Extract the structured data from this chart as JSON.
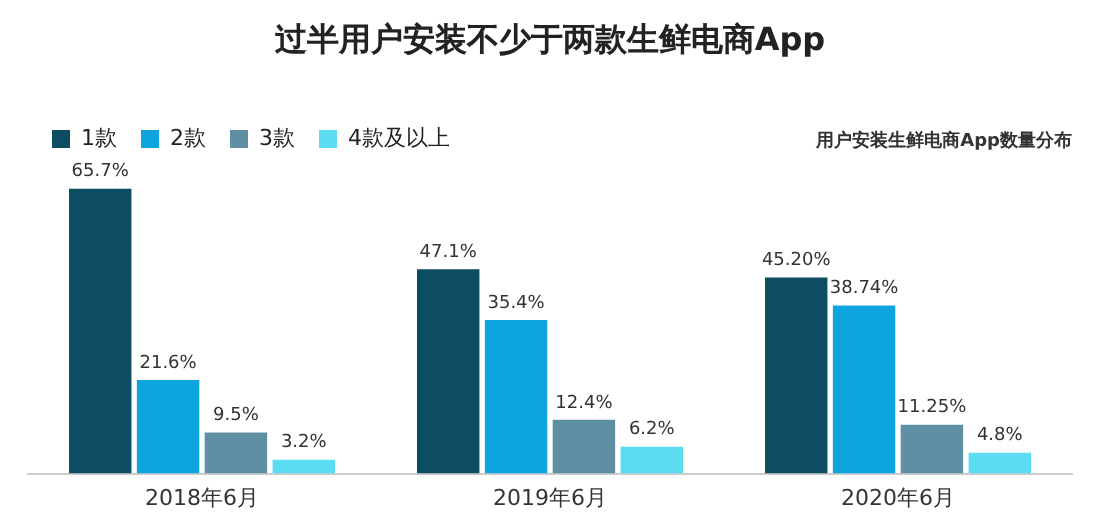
{
  "chart_data": {
    "type": "bar",
    "title": "过半用户安装不少于两款生鲜电商App",
    "subtitle": "用户安装生鲜电商App数量分布",
    "categories": [
      "2018年6月",
      "2019年6月",
      "2020年6月"
    ],
    "series": [
      {
        "name": "1款",
        "color": "#0d4d61",
        "values": [
          65.7,
          47.1,
          45.2
        ],
        "value_labels": [
          "65.7%",
          "47.1%",
          "45.20%"
        ]
      },
      {
        "name": "2款",
        "color": "#0ea5de",
        "values": [
          21.6,
          35.4,
          38.74
        ],
        "value_labels": [
          "21.6%",
          "35.4%",
          "38.74%"
        ]
      },
      {
        "name": "3款",
        "color": "#5e8fa2",
        "values": [
          9.5,
          12.4,
          11.25
        ],
        "value_labels": [
          "9.5%",
          "12.4%",
          "11.25%"
        ]
      },
      {
        "name": "4款及以上",
        "color": "#5cdcf3",
        "values": [
          3.2,
          6.2,
          4.8
        ],
        "value_labels": [
          "3.2%",
          "6.2%",
          "4.8%"
        ]
      }
    ],
    "legend": "top left"
  }
}
